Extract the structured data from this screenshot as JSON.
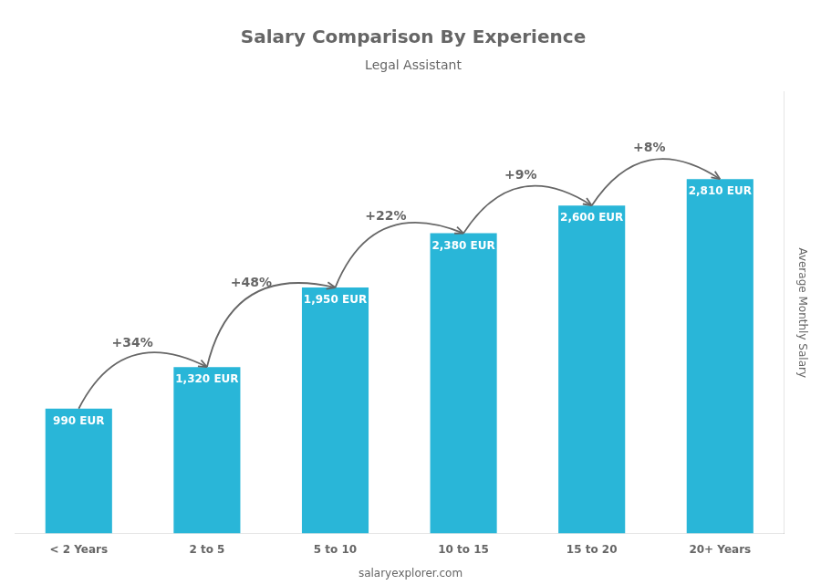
{
  "chart_data": {
    "type": "bar",
    "title": "Salary Comparison By Experience",
    "subtitle": "Legal Assistant",
    "categories": [
      "< 2 Years",
      "2 to 5",
      "5 to 10",
      "10 to 15",
      "15 to 20",
      "20+ Years"
    ],
    "values": [
      990,
      1320,
      1950,
      2380,
      2600,
      2810
    ],
    "value_labels": [
      "990 EUR",
      "1,320 EUR",
      "1,950 EUR",
      "2,380 EUR",
      "2,600 EUR",
      "2,810 EUR"
    ],
    "data_labels": true,
    "annotations": [
      "+34%",
      "+48%",
      "+22%",
      "+9%",
      "+8%"
    ],
    "ylabel": "Average Monthly Salary",
    "footer": "salaryexplorer.com",
    "color": "#29b6d8",
    "ylim": [
      0,
      3500
    ],
    "grid": false,
    "tick_labels": "x"
  }
}
